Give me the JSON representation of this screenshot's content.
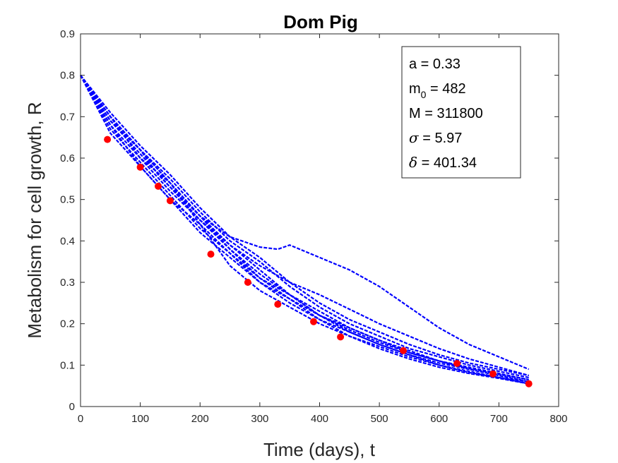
{
  "chart_data": {
    "type": "line",
    "title": "Dom Pig",
    "xlabel": "Time (days), t",
    "ylabel": "Metabolism for cell growth, R",
    "xlim": [
      0,
      800
    ],
    "ylim": [
      0,
      0.9
    ],
    "xticks": [
      "0",
      "100",
      "200",
      "300",
      "400",
      "500",
      "600",
      "700",
      "800"
    ],
    "yticks": [
      "0",
      "0.1",
      "0.2",
      "0.3",
      "0.4",
      "0.5",
      "0.6",
      "0.7",
      "0.8",
      "0.9"
    ],
    "grid": false,
    "series_color": "#0000ff",
    "points_color": "#ff0000",
    "series": [
      {
        "x": [
          0,
          50,
          100,
          150,
          200,
          220,
          250,
          300,
          350,
          400,
          450,
          500,
          550,
          600,
          650,
          700,
          750
        ],
        "y": [
          0.8,
          0.7,
          0.62,
          0.54,
          0.44,
          0.4,
          0.34,
          0.28,
          0.24,
          0.2,
          0.17,
          0.145,
          0.12,
          0.1,
          0.085,
          0.07,
          0.06
        ]
      },
      {
        "x": [
          0,
          50,
          100,
          150,
          200,
          250,
          300,
          350,
          400,
          450,
          500,
          550,
          600,
          650,
          700,
          750
        ],
        "y": [
          0.8,
          0.68,
          0.6,
          0.52,
          0.45,
          0.38,
          0.31,
          0.27,
          0.22,
          0.18,
          0.15,
          0.125,
          0.105,
          0.09,
          0.075,
          0.06
        ]
      },
      {
        "x": [
          0,
          50,
          100,
          150,
          200,
          250,
          300,
          350,
          400,
          450,
          500,
          550,
          600,
          650,
          700,
          750
        ],
        "y": [
          0.8,
          0.66,
          0.58,
          0.5,
          0.42,
          0.36,
          0.3,
          0.25,
          0.21,
          0.17,
          0.14,
          0.115,
          0.095,
          0.08,
          0.068,
          0.055
        ]
      },
      {
        "x": [
          0,
          50,
          100,
          150,
          200,
          250,
          300,
          350,
          400,
          450,
          500,
          550,
          600,
          650,
          700,
          750
        ],
        "y": [
          0.8,
          0.7,
          0.62,
          0.55,
          0.47,
          0.4,
          0.35,
          0.29,
          0.24,
          0.2,
          0.17,
          0.14,
          0.12,
          0.1,
          0.085,
          0.07
        ]
      },
      {
        "x": [
          0,
          50,
          100,
          150,
          200,
          250,
          300,
          350,
          400,
          450,
          500,
          550,
          600,
          650,
          700,
          750
        ],
        "y": [
          0.8,
          0.67,
          0.59,
          0.51,
          0.43,
          0.37,
          0.3,
          0.26,
          0.21,
          0.18,
          0.15,
          0.125,
          0.1,
          0.082,
          0.07,
          0.055
        ]
      },
      {
        "x": [
          0,
          50,
          100,
          150,
          200,
          250,
          300,
          350,
          400,
          450,
          500,
          550,
          600,
          650,
          700,
          750
        ],
        "y": [
          0.8,
          0.71,
          0.63,
          0.56,
          0.48,
          0.41,
          0.36,
          0.3,
          0.25,
          0.21,
          0.18,
          0.15,
          0.125,
          0.105,
          0.09,
          0.075
        ]
      },
      {
        "x": [
          0,
          50,
          100,
          150,
          200,
          250,
          300,
          350,
          400,
          450,
          500,
          550,
          600,
          650,
          700,
          750
        ],
        "y": [
          0.8,
          0.69,
          0.61,
          0.53,
          0.45,
          0.39,
          0.33,
          0.27,
          0.23,
          0.19,
          0.16,
          0.135,
          0.11,
          0.092,
          0.078,
          0.065
        ]
      },
      {
        "x": [
          0,
          50,
          100,
          150,
          200,
          250,
          300,
          350,
          400,
          450,
          500,
          550,
          600,
          650,
          700,
          750
        ],
        "y": [
          0.8,
          0.7,
          0.6,
          0.54,
          0.46,
          0.38,
          0.32,
          0.27,
          0.22,
          0.19,
          0.16,
          0.13,
          0.11,
          0.095,
          0.08,
          0.065
        ]
      },
      {
        "x": [
          0,
          50,
          100,
          150,
          200,
          250,
          300,
          350,
          400,
          450,
          500,
          550,
          600,
          650,
          700,
          750
        ],
        "y": [
          0.8,
          0.68,
          0.58,
          0.5,
          0.44,
          0.37,
          0.31,
          0.26,
          0.22,
          0.185,
          0.155,
          0.13,
          0.11,
          0.09,
          0.075,
          0.06
        ]
      },
      {
        "x": [
          0,
          50,
          100,
          130,
          150,
          200,
          250,
          300,
          330,
          350,
          400,
          450,
          500,
          550,
          600,
          650,
          700,
          750
        ],
        "y": [
          0.8,
          0.7,
          0.62,
          0.56,
          0.53,
          0.46,
          0.41,
          0.385,
          0.38,
          0.39,
          0.36,
          0.33,
          0.29,
          0.24,
          0.19,
          0.15,
          0.12,
          0.09
        ]
      },
      {
        "x": [
          0,
          50,
          100,
          150,
          200,
          250,
          300,
          350,
          400,
          450,
          500,
          550,
          600,
          650,
          700,
          750
        ],
        "y": [
          0.8,
          0.69,
          0.62,
          0.54,
          0.46,
          0.39,
          0.34,
          0.3,
          0.27,
          0.235,
          0.2,
          0.17,
          0.14,
          0.115,
          0.095,
          0.075
        ]
      }
    ],
    "points": {
      "x": [
        45,
        100,
        130,
        150,
        218,
        280,
        330,
        390,
        435,
        540,
        630,
        690,
        750
      ],
      "y": [
        0.645,
        0.578,
        0.532,
        0.497,
        0.368,
        0.3,
        0.247,
        0.205,
        0.168,
        0.135,
        0.104,
        0.079,
        0.055
      ]
    },
    "legend": {
      "placement": "top-right",
      "lines": [
        {
          "sym": "a",
          "sub": "",
          "value": " = 0.33"
        },
        {
          "sym": "m",
          "sub": "0",
          "value": " = 482"
        },
        {
          "sym": "M",
          "sub": "",
          "value": " = 311800"
        },
        {
          "sym": "σ",
          "sub": "",
          "value": " = 5.97"
        },
        {
          "sym": "δ",
          "sub": "",
          "value": " = 401.34"
        }
      ]
    }
  }
}
